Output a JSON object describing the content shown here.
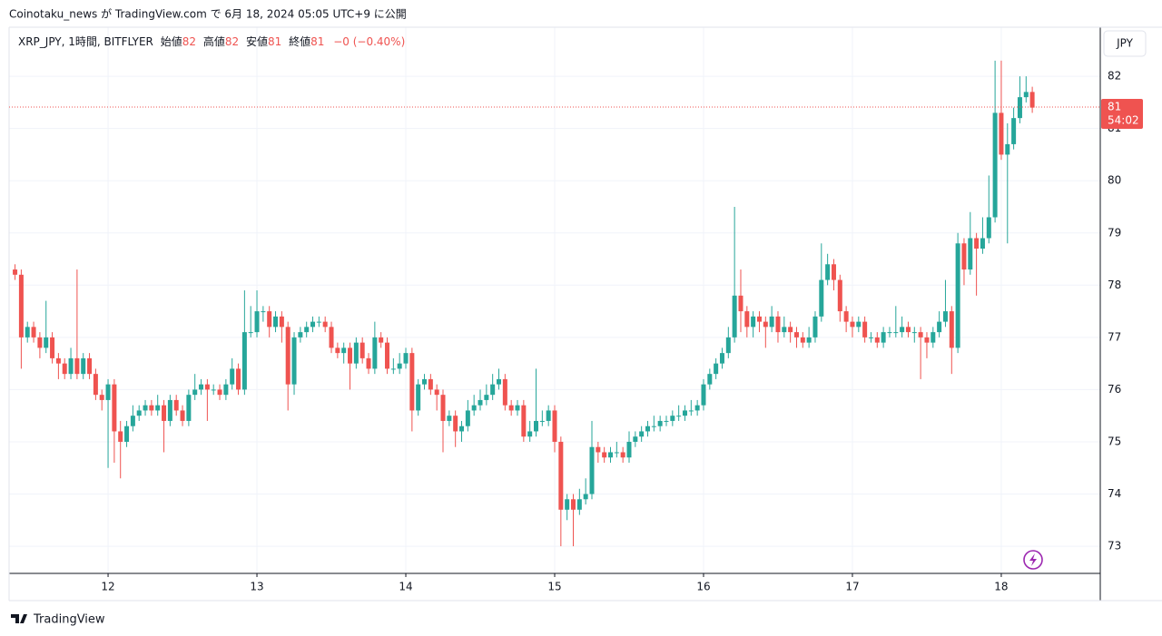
{
  "header": {
    "title": "Coinotaku_news が TradingView.com で 6月 18, 2024 05:05 UTC+9 に公開"
  },
  "footer": {
    "brand": "TradingView"
  },
  "chart_data": {
    "type": "candlestick",
    "legend": {
      "symbol": "XRP_JPY, 1時間, BITFLYER",
      "open_label": "始値",
      "open": "82",
      "high_label": "高値",
      "high": "82",
      "low_label": "安値",
      "low": "81",
      "close_label": "終値",
      "close": "81",
      "change": "−0 (−0.40%)"
    },
    "currency": "JPY",
    "last_price": {
      "value": 81.41,
      "label": "81"
    },
    "countdown": "54:02",
    "up_color": "#26a69a",
    "down_color": "#ef5350",
    "grid": true,
    "xlim": [
      11.335,
      18.665
    ],
    "xticks": [
      12,
      13,
      14,
      15,
      16,
      17,
      18
    ],
    "ylim": [
      72.48,
      82.94
    ],
    "yticks": [
      73,
      74,
      75,
      76,
      77,
      78,
      79,
      80,
      81,
      82
    ],
    "x": [
      11.375,
      11.4167,
      11.4583,
      11.5,
      11.5417,
      11.5833,
      11.625,
      11.6667,
      11.7083,
      11.75,
      11.7917,
      11.8333,
      11.875,
      11.9167,
      11.9583,
      12,
      12.0417,
      12.0833,
      12.125,
      12.1667,
      12.2083,
      12.25,
      12.2917,
      12.3333,
      12.375,
      12.4167,
      12.4583,
      12.5,
      12.5417,
      12.5833,
      12.625,
      12.6667,
      12.7083,
      12.75,
      12.7917,
      12.8333,
      12.875,
      12.9167,
      12.9583,
      13,
      13.0417,
      13.0833,
      13.125,
      13.1667,
      13.2083,
      13.25,
      13.2917,
      13.3333,
      13.375,
      13.4167,
      13.4583,
      13.5,
      13.5417,
      13.5833,
      13.625,
      13.6667,
      13.7083,
      13.75,
      13.7917,
      13.8333,
      13.875,
      13.9167,
      13.9583,
      14,
      14.0417,
      14.0833,
      14.125,
      14.1667,
      14.2083,
      14.25,
      14.2917,
      14.3333,
      14.375,
      14.4167,
      14.4583,
      14.5,
      14.5417,
      14.5833,
      14.625,
      14.6667,
      14.7083,
      14.75,
      14.7917,
      14.8333,
      14.875,
      14.9167,
      14.9583,
      15,
      15.0417,
      15.0833,
      15.125,
      15.1667,
      15.2083,
      15.25,
      15.2917,
      15.3333,
      15.375,
      15.4167,
      15.4583,
      15.5,
      15.5417,
      15.5833,
      15.625,
      15.6667,
      15.7083,
      15.75,
      15.7917,
      15.8333,
      15.875,
      15.9167,
      15.9583,
      16,
      16.0417,
      16.0833,
      16.125,
      16.1667,
      16.2083,
      16.25,
      16.2917,
      16.3333,
      16.375,
      16.4167,
      16.4583,
      16.5,
      16.5417,
      16.5833,
      16.625,
      16.6667,
      16.7083,
      16.75,
      16.7917,
      16.8333,
      16.875,
      16.9167,
      16.9583,
      17,
      17.0417,
      17.0833,
      17.125,
      17.1667,
      17.2083,
      17.25,
      17.2917,
      17.3333,
      17.375,
      17.4167,
      17.4583,
      17.5,
      17.5417,
      17.5833,
      17.625,
      17.6667,
      17.7083,
      17.75,
      17.7917,
      17.8333,
      17.875,
      17.9167,
      17.9583,
      18,
      18.0417,
      18.0833,
      18.125,
      18.1667,
      18.2083
    ],
    "open": [
      78.3,
      78.2,
      77.0,
      77.2,
      77.0,
      76.8,
      77.0,
      76.6,
      76.5,
      76.3,
      76.6,
      76.3,
      76.6,
      76.3,
      75.9,
      75.8,
      76.1,
      75.2,
      75.0,
      75.3,
      75.5,
      75.6,
      75.7,
      75.6,
      75.7,
      75.4,
      75.8,
      75.6,
      75.4,
      75.9,
      76.0,
      76.1,
      76.0,
      76.0,
      75.9,
      76.1,
      76.4,
      76.0,
      77.1,
      77.1,
      77.5,
      77.5,
      77.2,
      77.4,
      77.2,
      76.1,
      77.0,
      77.1,
      77.2,
      77.3,
      77.3,
      77.2,
      76.8,
      76.7,
      76.8,
      76.5,
      76.9,
      76.6,
      76.4,
      77.0,
      76.9,
      76.4,
      76.4,
      76.5,
      76.7,
      75.6,
      76.1,
      76.2,
      76.0,
      75.9,
      75.4,
      75.5,
      75.2,
      75.3,
      75.6,
      75.7,
      75.8,
      75.9,
      76.1,
      76.2,
      75.7,
      75.6,
      75.7,
      75.1,
      75.2,
      75.4,
      75.4,
      75.6,
      75.0,
      73.7,
      73.9,
      73.7,
      73.9,
      74.0,
      74.9,
      74.8,
      74.7,
      74.8,
      74.8,
      74.7,
      75.0,
      75.1,
      75.2,
      75.3,
      75.3,
      75.4,
      75.4,
      75.5,
      75.5,
      75.6,
      75.6,
      75.7,
      76.1,
      76.3,
      76.5,
      76.7,
      77.0,
      77.8,
      77.5,
      77.2,
      77.4,
      77.3,
      77.2,
      77.4,
      77.1,
      77.2,
      77.1,
      77.0,
      76.9,
      77.0,
      77.4,
      78.1,
      78.4,
      78.1,
      77.5,
      77.3,
      77.2,
      77.3,
      77.0,
      77.0,
      76.9,
      77.1,
      77.1,
      77.1,
      77.2,
      77.1,
      77.1,
      77.0,
      76.9,
      77.1,
      77.3,
      77.5,
      76.8,
      78.8,
      78.3,
      78.9,
      78.7,
      78.9,
      79.3,
      81.3,
      80.5,
      80.7,
      81.2,
      81.6,
      81.7
    ],
    "high": [
      78.4,
      78.3,
      77.3,
      77.3,
      77.1,
      77.7,
      77.1,
      76.7,
      76.6,
      76.8,
      78.3,
      76.7,
      76.7,
      76.4,
      76.0,
      76.2,
      76.2,
      75.4,
      75.4,
      75.7,
      75.7,
      75.8,
      75.8,
      75.9,
      75.8,
      75.9,
      75.9,
      75.7,
      76.0,
      76.3,
      76.2,
      76.2,
      76.1,
      76.1,
      76.2,
      76.6,
      76.5,
      77.9,
      77.6,
      77.9,
      77.6,
      77.6,
      77.5,
      77.5,
      77.3,
      77.1,
      77.2,
      77.3,
      77.4,
      77.4,
      77.4,
      77.3,
      76.9,
      76.9,
      76.9,
      77.0,
      77.0,
      76.7,
      77.3,
      77.1,
      77.0,
      76.6,
      76.7,
      76.8,
      76.8,
      76.2,
      76.3,
      76.3,
      76.1,
      76.0,
      75.6,
      75.6,
      75.4,
      75.8,
      75.9,
      76.0,
      76.1,
      76.3,
      76.4,
      76.3,
      75.8,
      75.8,
      75.8,
      75.4,
      76.4,
      75.6,
      75.7,
      75.7,
      75.1,
      74.0,
      74.0,
      74.1,
      74.3,
      75.4,
      75.0,
      74.9,
      74.9,
      75.0,
      74.9,
      75.2,
      75.2,
      75.3,
      75.4,
      75.5,
      75.5,
      75.5,
      75.6,
      75.7,
      75.7,
      75.8,
      75.8,
      76.2,
      76.4,
      76.6,
      76.8,
      77.2,
      79.5,
      78.3,
      77.6,
      77.5,
      77.5,
      77.4,
      77.6,
      77.5,
      77.4,
      77.3,
      77.2,
      77.1,
      77.2,
      77.5,
      78.8,
      78.6,
      78.5,
      78.2,
      77.6,
      77.4,
      77.4,
      77.4,
      77.1,
      77.1,
      77.2,
      77.2,
      77.6,
      77.4,
      77.3,
      77.2,
      77.2,
      77.1,
      77.2,
      77.5,
      78.1,
      77.6,
      79.0,
      78.9,
      79.4,
      79.0,
      79.3,
      80.1,
      82.3,
      82.3,
      81.1,
      81.4,
      82.0,
      82.0,
      81.8
    ],
    "low": [
      78.1,
      76.4,
      76.9,
      76.9,
      76.6,
      76.7,
      76.5,
      76.2,
      76.2,
      76.2,
      76.2,
      76.2,
      76.2,
      75.8,
      75.6,
      74.5,
      74.6,
      74.3,
      74.9,
      75.2,
      75.4,
      75.5,
      75.5,
      75.5,
      74.8,
      75.3,
      75.5,
      75.3,
      75.3,
      75.8,
      75.9,
      75.4,
      75.9,
      75.8,
      75.8,
      76.0,
      75.9,
      75.9,
      77.0,
      77.0,
      77.3,
      77.0,
      77.1,
      76.9,
      75.6,
      75.9,
      76.9,
      77.0,
      77.1,
      77.2,
      77.1,
      76.7,
      76.6,
      76.5,
      76.0,
      76.4,
      76.5,
      76.3,
      76.3,
      76.8,
      76.3,
      76.3,
      76.3,
      76.4,
      75.2,
      75.5,
      76.0,
      75.9,
      75.6,
      74.8,
      75.3,
      74.9,
      75.0,
      75.2,
      75.5,
      75.6,
      75.7,
      75.8,
      76.0,
      75.6,
      75.5,
      75.5,
      75.0,
      75.0,
      75.1,
      75.3,
      75.3,
      74.8,
      73.0,
      73.5,
      73.0,
      73.6,
      73.8,
      73.9,
      74.6,
      74.6,
      74.6,
      74.7,
      74.6,
      74.6,
      74.9,
      75.0,
      75.1,
      75.2,
      75.2,
      75.3,
      75.3,
      75.4,
      75.4,
      75.5,
      75.5,
      75.6,
      76.0,
      76.2,
      76.4,
      76.6,
      76.9,
      77.1,
      77.0,
      77.0,
      77.1,
      76.8,
      77.1,
      76.9,
      77.0,
      76.9,
      76.8,
      76.8,
      76.8,
      76.9,
      77.3,
      78.0,
      77.9,
      77.3,
      77.1,
      77.0,
      77.1,
      76.9,
      76.9,
      76.8,
      76.8,
      77.0,
      77.0,
      77.0,
      77.0,
      76.9,
      76.2,
      76.6,
      76.8,
      77.0,
      77.2,
      76.3,
      76.7,
      78.0,
      78.2,
      77.8,
      78.6,
      78.8,
      79.2,
      80.4,
      78.8,
      80.6,
      81.1,
      81.5,
      81.3
    ],
    "close": [
      78.2,
      77.0,
      77.2,
      77.0,
      76.8,
      77.0,
      76.6,
      76.5,
      76.3,
      76.6,
      76.3,
      76.6,
      76.3,
      75.9,
      75.8,
      76.1,
      75.2,
      75.0,
      75.3,
      75.5,
      75.6,
      75.7,
      75.6,
      75.7,
      75.4,
      75.8,
      75.6,
      75.4,
      75.9,
      76.0,
      76.1,
      76.0,
      76.0,
      75.9,
      76.1,
      76.4,
      76.0,
      77.1,
      77.1,
      77.5,
      77.5,
      77.2,
      77.4,
      77.2,
      76.1,
      77.0,
      77.1,
      77.2,
      77.3,
      77.3,
      77.2,
      76.8,
      76.7,
      76.8,
      76.5,
      76.9,
      76.6,
      76.4,
      77.0,
      76.9,
      76.4,
      76.4,
      76.5,
      76.7,
      75.6,
      76.1,
      76.2,
      76.0,
      75.9,
      75.4,
      75.5,
      75.2,
      75.3,
      75.6,
      75.7,
      75.8,
      75.9,
      76.1,
      76.2,
      75.7,
      75.6,
      75.7,
      75.1,
      75.2,
      75.4,
      75.4,
      75.6,
      75.0,
      73.7,
      73.9,
      73.7,
      73.9,
      74.0,
      74.9,
      74.8,
      74.7,
      74.8,
      74.8,
      74.7,
      75.0,
      75.1,
      75.2,
      75.3,
      75.3,
      75.4,
      75.4,
      75.5,
      75.5,
      75.6,
      75.6,
      75.7,
      76.1,
      76.3,
      76.5,
      76.7,
      77.0,
      77.8,
      77.5,
      77.2,
      77.4,
      77.3,
      77.2,
      77.4,
      77.1,
      77.2,
      77.1,
      77.0,
      76.9,
      77.0,
      77.4,
      78.1,
      78.4,
      78.1,
      77.5,
      77.3,
      77.2,
      77.3,
      77.0,
      77.0,
      76.9,
      77.1,
      77.1,
      77.1,
      77.2,
      77.1,
      77.1,
      77.0,
      76.9,
      77.1,
      77.3,
      77.5,
      76.8,
      78.8,
      78.3,
      78.9,
      78.7,
      78.9,
      79.3,
      81.3,
      80.5,
      80.7,
      81.2,
      81.6,
      81.7,
      81.4
    ]
  }
}
